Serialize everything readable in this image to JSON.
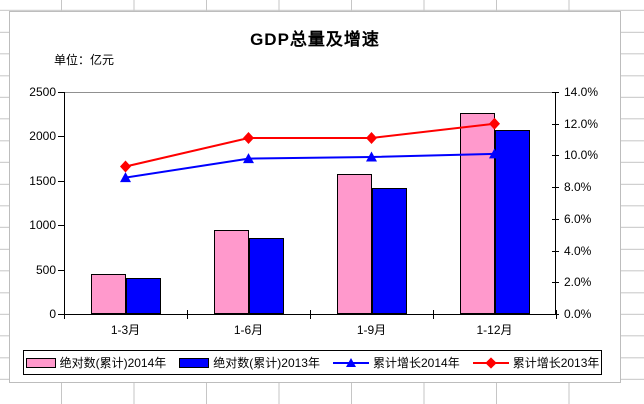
{
  "chart_data": {
    "type": "bar+line",
    "title": "GDP总量及增速",
    "unit_label": "单位：亿元",
    "categories": [
      "1-3月",
      "1-6月",
      "1-9月",
      "1-12月"
    ],
    "bar_series": [
      {
        "name": "绝对数(累计)2014年",
        "color": "#FF99CC",
        "axis": "left",
        "values": [
          450,
          950,
          1580,
          2260
        ]
      },
      {
        "name": "绝对数(累计)2013年",
        "color": "#0000FF",
        "axis": "left",
        "values": [
          400,
          860,
          1420,
          2070
        ]
      }
    ],
    "line_series": [
      {
        "name": "累计增长2014年",
        "color": "#0000FF",
        "marker": "triangle",
        "axis": "right",
        "values_pct": [
          8.6,
          9.8,
          9.9,
          10.1
        ]
      },
      {
        "name": "累计增长2013年",
        "color": "#FF0000",
        "marker": "diamond",
        "axis": "right",
        "values_pct": [
          9.3,
          11.1,
          11.1,
          12.0
        ]
      }
    ],
    "left_axis": {
      "min": 0,
      "max": 2500,
      "step": 500,
      "tick_labels": [
        "0",
        "500",
        "1000",
        "1500",
        "2000",
        "2500"
      ]
    },
    "right_axis": {
      "min": 0,
      "max": 14,
      "step": 2,
      "tick_labels": [
        "0.0%",
        "2.0%",
        "4.0%",
        "6.0%",
        "8.0%",
        "10.0%",
        "12.0%",
        "14.0%"
      ]
    },
    "legend_position": "bottom",
    "grid": "off",
    "plot_background": "#ffffff",
    "sheet_grid_color": "#c6c6c6"
  }
}
